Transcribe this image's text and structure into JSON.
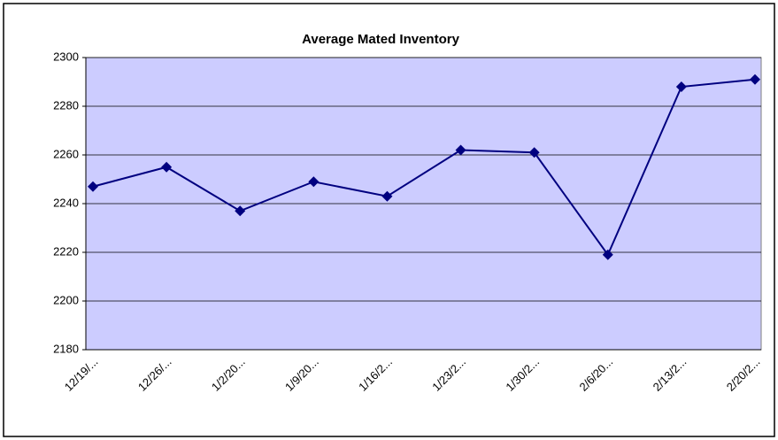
{
  "chart_data": {
    "type": "line",
    "title": "Average Mated Inventory",
    "categories": [
      "12/19/...",
      "12/26/...",
      "1/2/20...",
      "1/9/20...",
      "1/16/2...",
      "1/23/2...",
      "1/30/2...",
      "2/6/20...",
      "2/13/2...",
      "2/20/2..."
    ],
    "series": [
      {
        "name": "Average Mated Inventory",
        "color": "#000080",
        "values": [
          2247,
          2255,
          2237,
          2249,
          2243,
          2262,
          2261,
          2219,
          2288,
          2291
        ]
      }
    ],
    "ylim": [
      2180,
      2300
    ],
    "yticks": [
      2180,
      2200,
      2220,
      2240,
      2260,
      2280,
      2300
    ],
    "grid": true
  }
}
